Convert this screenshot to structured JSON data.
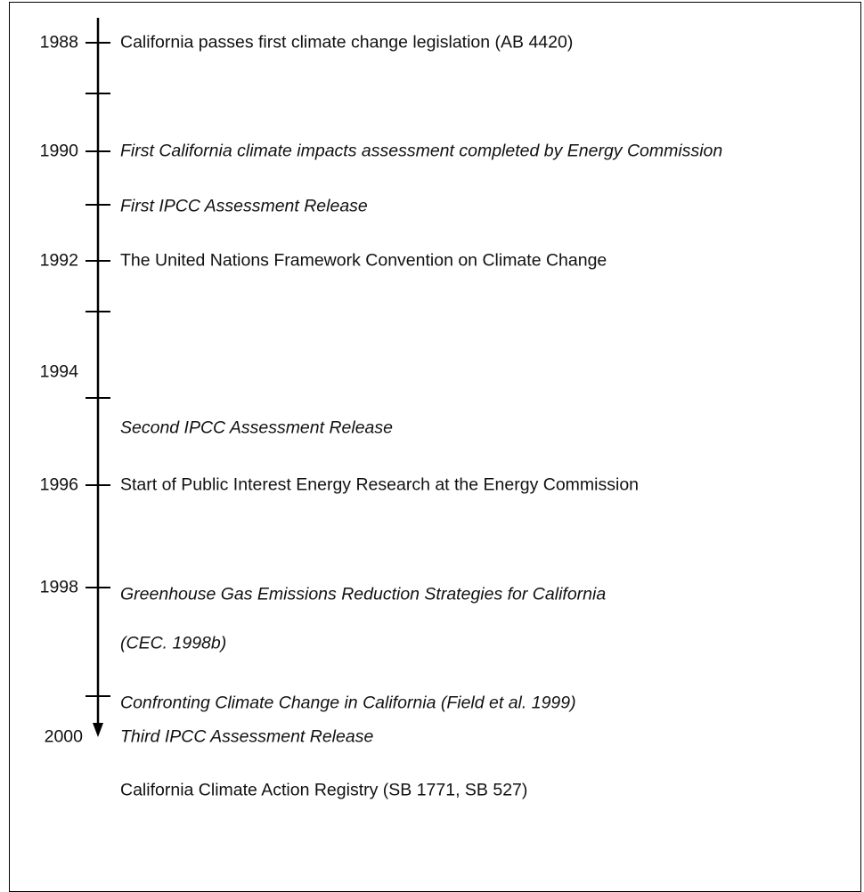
{
  "timeline": {
    "years": [
      "1988",
      "1990",
      "1992",
      "1994",
      "1996",
      "1998",
      "2000"
    ],
    "events": [
      {
        "text": "California passes first climate change legislation (AB 4420)",
        "italic": false
      },
      {
        "text": "First California climate impacts assessment completed by Energy Commission",
        "italic": true
      },
      {
        "text": "First IPCC Assessment Release",
        "italic": true
      },
      {
        "text": "The United Nations Framework Convention on Climate Change",
        "italic": false
      },
      {
        "text": "Second IPCC Assessment Release",
        "italic": true
      },
      {
        "text": "Start of Public Interest Energy Research at the Energy Commission",
        "italic": false
      },
      {
        "text": "Greenhouse Gas Emissions Reduction Strategies for California",
        "italic": true
      },
      {
        "text": "(CEC. 1998b)",
        "italic": true
      },
      {
        "text": "Confronting Climate Change in California (Field et al. 1999)",
        "italic": true
      },
      {
        "text": "Third IPCC Assessment Release",
        "italic": true
      },
      {
        "text": "California Climate Action Registry (SB 1771, SB 527)",
        "italic": false
      }
    ]
  }
}
